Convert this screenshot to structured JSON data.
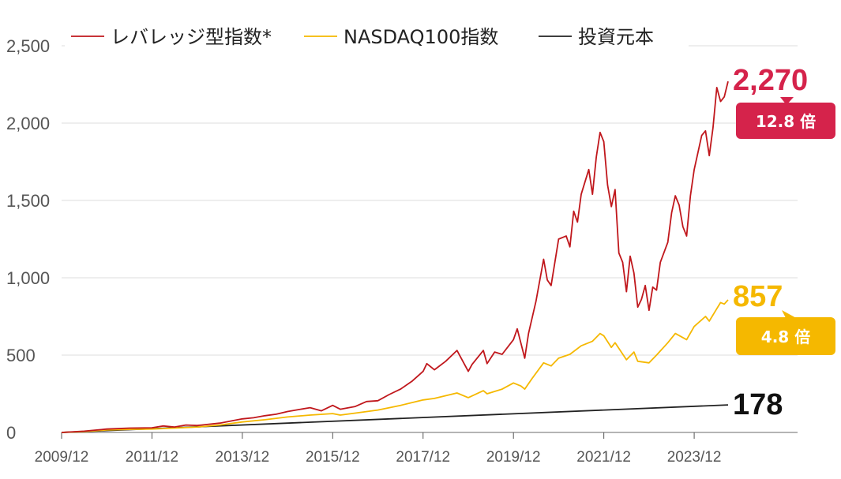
{
  "chart_data": {
    "type": "line",
    "title": "",
    "xlabel": "",
    "ylabel": "",
    "ylim": [
      0,
      2500
    ],
    "yticks": [
      0,
      500,
      1000,
      1500,
      2000,
      2500
    ],
    "ytick_labels": [
      "0",
      "500",
      "1,000",
      "1,500",
      "2,000",
      "2,500"
    ],
    "xticks": [
      "2009/12",
      "2011/12",
      "2013/12",
      "2015/12",
      "2017/12",
      "2019/12",
      "2021/12",
      "2023/12"
    ],
    "grid": "horizontal",
    "legend": "top",
    "series": [
      {
        "name": "レバレッジ型指数*",
        "color": "#c0171c",
        "end_label": "2,270",
        "badge": "12.8 倍",
        "badge_color": "#d5234b",
        "points": [
          [
            "2009/12",
            0
          ],
          [
            "2010/06",
            8
          ],
          [
            "2010/12",
            22
          ],
          [
            "2011/06",
            28
          ],
          [
            "2011/12",
            30
          ],
          [
            "2012/03",
            42
          ],
          [
            "2012/06",
            35
          ],
          [
            "2012/09",
            48
          ],
          [
            "2012/12",
            45
          ],
          [
            "2013/06",
            60
          ],
          [
            "2013/12",
            88
          ],
          [
            "2014/03",
            95
          ],
          [
            "2014/06",
            108
          ],
          [
            "2014/09",
            118
          ],
          [
            "2014/12",
            135
          ],
          [
            "2015/03",
            148
          ],
          [
            "2015/06",
            160
          ],
          [
            "2015/09",
            140
          ],
          [
            "2015/12",
            175
          ],
          [
            "2016/02",
            150
          ],
          [
            "2016/06",
            168
          ],
          [
            "2016/09",
            200
          ],
          [
            "2016/12",
            205
          ],
          [
            "2017/03",
            245
          ],
          [
            "2017/06",
            280
          ],
          [
            "2017/09",
            330
          ],
          [
            "2017/12",
            395
          ],
          [
            "2018/01",
            445
          ],
          [
            "2018/03",
            405
          ],
          [
            "2018/06",
            460
          ],
          [
            "2018/09",
            530
          ],
          [
            "2018/12",
            395
          ],
          [
            "2019/01",
            440
          ],
          [
            "2019/04",
            530
          ],
          [
            "2019/05",
            445
          ],
          [
            "2019/07",
            520
          ],
          [
            "2019/09",
            505
          ],
          [
            "2019/12",
            600
          ],
          [
            "2020/01",
            670
          ],
          [
            "2020/03",
            480
          ],
          [
            "2020/04",
            640
          ],
          [
            "2020/06",
            850
          ],
          [
            "2020/08",
            1120
          ],
          [
            "2020/09",
            985
          ],
          [
            "2020/10",
            950
          ],
          [
            "2020/12",
            1250
          ],
          [
            "2021/02",
            1270
          ],
          [
            "2021/03",
            1200
          ],
          [
            "2021/04",
            1430
          ],
          [
            "2021/05",
            1360
          ],
          [
            "2021/06",
            1540
          ],
          [
            "2021/08",
            1700
          ],
          [
            "2021/09",
            1540
          ],
          [
            "2021/10",
            1780
          ],
          [
            "2021/11",
            1940
          ],
          [
            "2021/12",
            1880
          ],
          [
            "2022/01",
            1600
          ],
          [
            "2022/02",
            1460
          ],
          [
            "2022/03",
            1570
          ],
          [
            "2022/04",
            1160
          ],
          [
            "2022/05",
            1100
          ],
          [
            "2022/06",
            910
          ],
          [
            "2022/07",
            1140
          ],
          [
            "2022/08",
            1030
          ],
          [
            "2022/09",
            810
          ],
          [
            "2022/10",
            860
          ],
          [
            "2022/11",
            950
          ],
          [
            "2022/12",
            790
          ],
          [
            "2023/01",
            940
          ],
          [
            "2023/02",
            920
          ],
          [
            "2023/03",
            1100
          ],
          [
            "2023/05",
            1230
          ],
          [
            "2023/06",
            1420
          ],
          [
            "2023/07",
            1530
          ],
          [
            "2023/08",
            1470
          ],
          [
            "2023/09",
            1330
          ],
          [
            "2023/10",
            1270
          ],
          [
            "2023/11",
            1530
          ],
          [
            "2023/12",
            1700
          ],
          [
            "2024/02",
            1920
          ],
          [
            "2024/03",
            1950
          ],
          [
            "2024/04",
            1790
          ],
          [
            "2024/05",
            1970
          ],
          [
            "2024/06",
            2230
          ],
          [
            "2024/07",
            2140
          ],
          [
            "2024/08",
            2170
          ],
          [
            "2024/09",
            2270
          ]
        ]
      },
      {
        "name": "NASDAQ100指数",
        "color": "#f5b800",
        "end_label": "857",
        "badge": "4.8 倍",
        "badge_color": "#f5b800",
        "points": [
          [
            "2009/12",
            0
          ],
          [
            "2010/06",
            6
          ],
          [
            "2010/12",
            16
          ],
          [
            "2011/06",
            20
          ],
          [
            "2011/12",
            22
          ],
          [
            "2012/06",
            28
          ],
          [
            "2012/12",
            35
          ],
          [
            "2013/06",
            48
          ],
          [
            "2013/12",
            68
          ],
          [
            "2014/06",
            82
          ],
          [
            "2014/12",
            100
          ],
          [
            "2015/06",
            112
          ],
          [
            "2015/12",
            122
          ],
          [
            "2016/02",
            112
          ],
          [
            "2016/06",
            125
          ],
          [
            "2016/12",
            145
          ],
          [
            "2017/06",
            175
          ],
          [
            "2017/12",
            210
          ],
          [
            "2018/03",
            220
          ],
          [
            "2018/09",
            255
          ],
          [
            "2018/12",
            225
          ],
          [
            "2019/04",
            270
          ],
          [
            "2019/05",
            250
          ],
          [
            "2019/09",
            280
          ],
          [
            "2019/12",
            320
          ],
          [
            "2020/02",
            300
          ],
          [
            "2020/03",
            280
          ],
          [
            "2020/05",
            350
          ],
          [
            "2020/08",
            450
          ],
          [
            "2020/10",
            430
          ],
          [
            "2020/12",
            480
          ],
          [
            "2021/03",
            505
          ],
          [
            "2021/06",
            560
          ],
          [
            "2021/09",
            590
          ],
          [
            "2021/11",
            640
          ],
          [
            "2021/12",
            625
          ],
          [
            "2022/02",
            550
          ],
          [
            "2022/03",
            580
          ],
          [
            "2022/06",
            470
          ],
          [
            "2022/08",
            520
          ],
          [
            "2022/09",
            460
          ],
          [
            "2022/12",
            450
          ],
          [
            "2023/02",
            500
          ],
          [
            "2023/05",
            580
          ],
          [
            "2023/07",
            640
          ],
          [
            "2023/10",
            600
          ],
          [
            "2023/12",
            685
          ],
          [
            "2024/03",
            750
          ],
          [
            "2024/04",
            720
          ],
          [
            "2024/06",
            800
          ],
          [
            "2024/07",
            840
          ],
          [
            "2024/08",
            830
          ],
          [
            "2024/09",
            857
          ]
        ]
      },
      {
        "name": "投資元本",
        "color": "#222222",
        "end_label": "178",
        "points": [
          [
            "2009/12",
            0
          ],
          [
            "2024/09",
            178
          ]
        ]
      }
    ]
  }
}
